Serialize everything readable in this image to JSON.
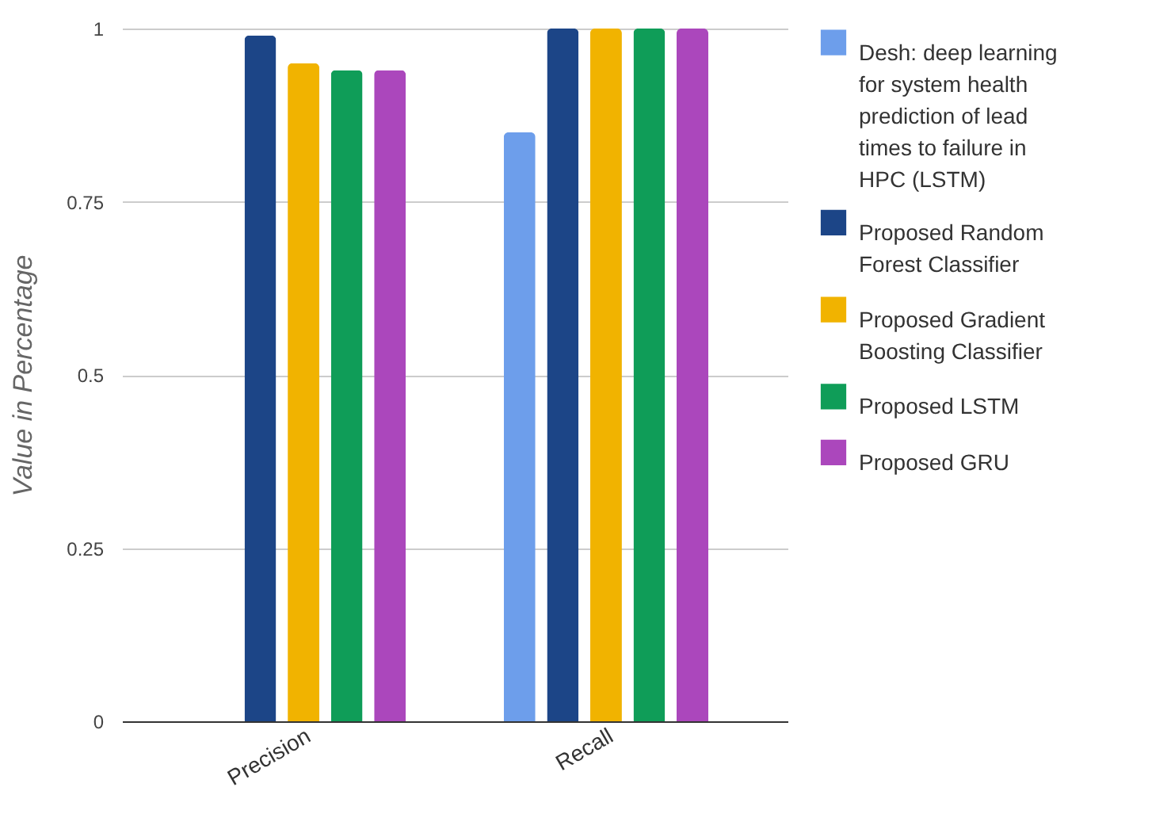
{
  "chart_data": {
    "type": "bar",
    "ylabel": "Value in Percentage",
    "categories": [
      "Precision",
      "Recall"
    ],
    "series": [
      {
        "name": "Desh: deep learning for system health prediction of lead times to failure in HPC (LSTM)",
        "color": "#6d9eeb",
        "values": [
          null,
          0.85
        ]
      },
      {
        "name": "Proposed Random Forest Classifier",
        "color": "#1c4587",
        "values": [
          0.99,
          1.0
        ]
      },
      {
        "name": "Proposed Gradient Boosting Classifier",
        "color": "#f1b300",
        "values": [
          0.95,
          1.0
        ]
      },
      {
        "name": "Proposed LSTM",
        "color": "#0f9d58",
        "values": [
          0.94,
          1.0
        ]
      },
      {
        "name": "Proposed GRU",
        "color": "#ab47bc",
        "values": [
          0.94,
          1.0
        ]
      }
    ],
    "ylim": [
      0,
      1
    ],
    "yticks": [
      0,
      0.25,
      0.5,
      0.75,
      1
    ],
    "grid": "y",
    "legend": "right"
  }
}
